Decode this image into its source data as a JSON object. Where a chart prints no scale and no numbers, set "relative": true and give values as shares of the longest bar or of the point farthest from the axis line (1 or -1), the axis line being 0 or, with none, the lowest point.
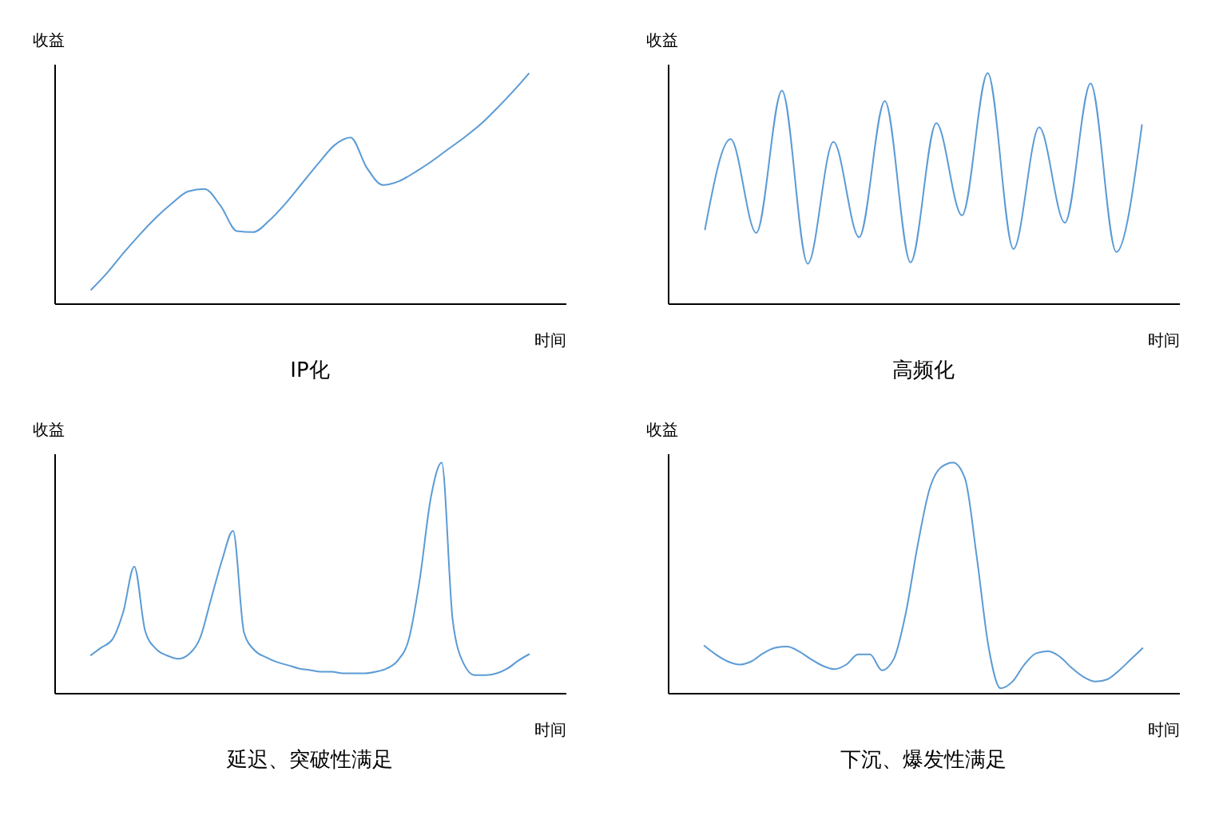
{
  "chart_data": [
    {
      "type": "line",
      "title": "IP化",
      "xlabel": "时间",
      "ylabel": "收益",
      "relative": true,
      "tick_labels": false,
      "grid": false,
      "marker": "none",
      "line_style": "solid",
      "color": "#5b9bd5",
      "categories": [
        null,
        null,
        null,
        null,
        null,
        null,
        null,
        null,
        null,
        null,
        null,
        null,
        null,
        null,
        null,
        null,
        null,
        null,
        null,
        null,
        null,
        null,
        null,
        null,
        null,
        null,
        null,
        null
      ],
      "values": [
        0.057,
        0.131,
        0.217,
        0.297,
        0.371,
        0.434,
        0.486,
        0.497,
        0.423,
        0.314,
        0.309,
        0.36,
        0.434,
        0.52,
        0.606,
        0.686,
        0.72,
        0.589,
        0.514,
        0.531,
        0.571,
        0.617,
        0.669,
        0.72,
        0.777,
        0.846,
        0.92,
        1
      ]
    },
    {
      "type": "line",
      "title": "高频化",
      "xlabel": "时间",
      "ylabel": "收益",
      "relative": true,
      "tick_labels": false,
      "grid": false,
      "marker": "none",
      "line_style": "solid",
      "color": "#5b9bd5",
      "categories": [
        null,
        null,
        null,
        null,
        null,
        null,
        null,
        null,
        null,
        null,
        null,
        null,
        null,
        null,
        null,
        null,
        null,
        null
      ],
      "values": [
        0.318,
        0.713,
        0.306,
        0.924,
        0.172,
        0.701,
        0.287,
        0.879,
        0.178,
        0.783,
        0.382,
        1,
        0.236,
        0.764,
        0.35,
        0.955,
        0.223,
        0.777
      ]
    },
    {
      "type": "line",
      "title": "延迟、突破性满足",
      "xlabel": "时间",
      "ylabel": "收益",
      "relative": true,
      "tick_labels": false,
      "grid": false,
      "marker": "none",
      "line_style": "solid",
      "color": "#5b9bd5",
      "categories": [
        null,
        null,
        null,
        null,
        null,
        null,
        null,
        null,
        null,
        null,
        null,
        null,
        null,
        null,
        null,
        null,
        null,
        null,
        null,
        null,
        null,
        null,
        null,
        null,
        null,
        null,
        null,
        null,
        null,
        null,
        null,
        null,
        null,
        null,
        null,
        null,
        null,
        null,
        null,
        null,
        null
      ],
      "values": [
        0.162,
        0.197,
        0.232,
        0.352,
        0.549,
        0.268,
        0.19,
        0.162,
        0.148,
        0.169,
        0.239,
        0.408,
        0.577,
        0.704,
        0.261,
        0.183,
        0.155,
        0.134,
        0.12,
        0.106,
        0.099,
        0.092,
        0.092,
        0.085,
        0.085,
        0.085,
        0.092,
        0.106,
        0.141,
        0.232,
        0.493,
        0.845,
        1,
        0.317,
        0.127,
        0.077,
        0.077,
        0.085,
        0.106,
        0.141,
        0.169
      ]
    },
    {
      "type": "line",
      "title": "下沉、爆发性满足",
      "xlabel": "时间",
      "ylabel": "收益",
      "relative": true,
      "tick_labels": false,
      "grid": false,
      "marker": "none",
      "line_style": "solid",
      "color": "#5b9bd5",
      "categories": [
        null,
        null,
        null,
        null,
        null,
        null,
        null,
        null,
        null,
        null,
        null,
        null,
        null,
        null,
        null,
        null,
        null,
        null,
        null,
        null,
        null,
        null,
        null,
        null,
        null,
        null,
        null,
        null,
        null,
        null,
        null,
        null,
        null,
        null,
        null,
        null,
        null,
        null
      ],
      "values": [
        0.206,
        0.167,
        0.137,
        0.123,
        0.137,
        0.172,
        0.196,
        0.201,
        0.181,
        0.147,
        0.118,
        0.103,
        0.123,
        0.167,
        0.167,
        0.098,
        0.147,
        0.343,
        0.637,
        0.882,
        0.98,
        1,
        0.931,
        0.588,
        0.196,
        0.02,
        0.049,
        0.123,
        0.172,
        0.181,
        0.157,
        0.108,
        0.069,
        0.049,
        0.059,
        0.098,
        0.147,
        0.196
      ]
    }
  ]
}
